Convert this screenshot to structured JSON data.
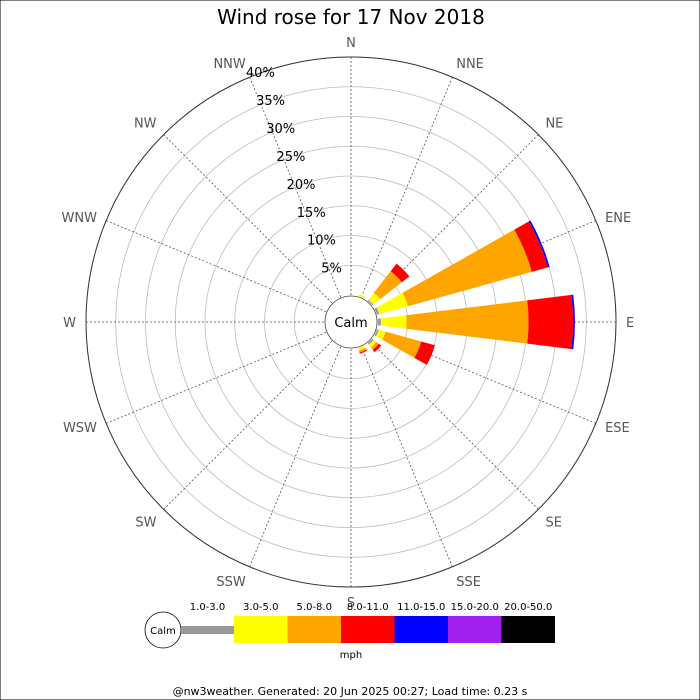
{
  "chart_data": {
    "type": "wind-rose",
    "title": "Wind rose for 17 Nov 2018",
    "directions": [
      "N",
      "NNE",
      "NE",
      "ENE",
      "E",
      "ESE",
      "SE",
      "SSE",
      "S",
      "SSW",
      "SW",
      "WSW",
      "W",
      "WNW",
      "NW",
      "NNW"
    ],
    "radial_ticks": [
      "5%",
      "10%",
      "15%",
      "20%",
      "25%",
      "30%",
      "35%",
      "40%"
    ],
    "radial_max": 40,
    "calm_label": "Calm",
    "speed_bins": [
      {
        "label": "1.0-3.0",
        "color": "#999999"
      },
      {
        "label": "3.0-5.0",
        "color": "#ffff00"
      },
      {
        "label": "5.0-8.0",
        "color": "#ffa500"
      },
      {
        "label": "8.0-11.0",
        "color": "#ff0000"
      },
      {
        "label": "11.0-15.0",
        "color": "#0000ff"
      },
      {
        "label": "15.0-20.0",
        "color": "#a020f0"
      },
      {
        "label": "20.0-50.0",
        "color": "#000000"
      }
    ],
    "units": "mph",
    "series": [
      {
        "direction": "N",
        "values": [
          0,
          0,
          0,
          0,
          0,
          0,
          0
        ]
      },
      {
        "direction": "NNE",
        "values": [
          0,
          0.3,
          0,
          0,
          0,
          0,
          0
        ]
      },
      {
        "direction": "NE",
        "values": [
          0.2,
          1.5,
          4.6,
          1.6,
          0,
          0,
          0
        ]
      },
      {
        "direction": "ENE",
        "values": [
          0.4,
          5.0,
          21.6,
          2.8,
          0.3,
          0,
          0
        ]
      },
      {
        "direction": "E",
        "values": [
          0.5,
          4.3,
          20.5,
          7.5,
          0.3,
          0,
          0
        ]
      },
      {
        "direction": "ESE",
        "values": [
          0.3,
          1.2,
          6.2,
          2.4,
          0,
          0,
          0
        ]
      },
      {
        "direction": "SE",
        "values": [
          0.3,
          0.6,
          0.5,
          0.5,
          0,
          0,
          0
        ]
      },
      {
        "direction": "SSE",
        "values": [
          0,
          0.4,
          0.4,
          0.2,
          0,
          0,
          0
        ]
      },
      {
        "direction": "S",
        "values": [
          0,
          0,
          0,
          0,
          0,
          0,
          0
        ]
      },
      {
        "direction": "SSW",
        "values": [
          0,
          0,
          0,
          0,
          0,
          0,
          0
        ]
      },
      {
        "direction": "SW",
        "values": [
          0,
          0,
          0,
          0,
          0,
          0,
          0
        ]
      },
      {
        "direction": "WSW",
        "values": [
          0,
          0,
          0,
          0,
          0,
          0,
          0
        ]
      },
      {
        "direction": "W",
        "values": [
          0,
          0,
          0,
          0,
          0,
          0,
          0
        ]
      },
      {
        "direction": "WNW",
        "values": [
          0,
          0,
          0,
          0,
          0,
          0,
          0
        ]
      },
      {
        "direction": "NW",
        "values": [
          0,
          0,
          0,
          0,
          0,
          0,
          0
        ]
      },
      {
        "direction": "NNW",
        "values": [
          0,
          0,
          0,
          0,
          0,
          0,
          0
        ]
      }
    ],
    "grid": true
  },
  "footer": "@nw3weather. Generated: 20 Jun 2025 00:27; Load time: 0.23 s"
}
